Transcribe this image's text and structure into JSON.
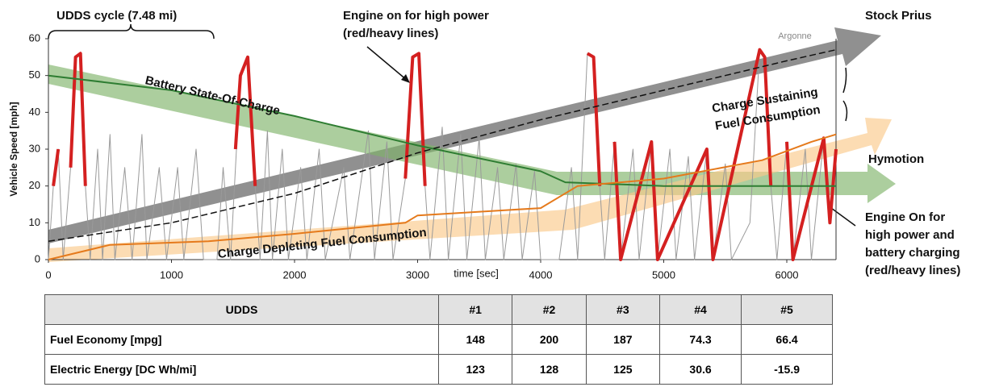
{
  "chart_data": {
    "type": "line",
    "x_label": "time [sec]",
    "y_label": "Vehicle Speed [mph]",
    "xlim": [
      0,
      6400
    ],
    "ylim": [
      0,
      60
    ],
    "xticks": [
      0,
      1000,
      2000,
      3000,
      4000,
      5000,
      6000
    ],
    "yticks": [
      0,
      10,
      20,
      30,
      40,
      50,
      60
    ],
    "logo": "Argonne",
    "annotations": [
      [
        "UDDS cycle (7.48 mi)"
      ],
      [
        "Engine on for high power",
        "(red/heavy lines)"
      ],
      [
        "Battery State-Of-Charge"
      ],
      [
        "Charge Sustaining",
        "Fuel Consumption"
      ],
      [
        "Engine On for",
        "high power and",
        "battery charging",
        "(red/heavy lines)"
      ],
      [
        "Charge Depleting Fuel Consumption"
      ]
    ],
    "series": [
      {
        "color": "#9a9a9a",
        "x": [
          0,
          40,
          80,
          120,
          180,
          220,
          260,
          300,
          340,
          400,
          440,
          500,
          540,
          620,
          680,
          760,
          800,
          900,
          960,
          1050,
          1100,
          1200,
          1260,
          1370,
          1420,
          1480,
          1560,
          1620,
          1680,
          1720,
          1780,
          1820,
          1900,
          1950,
          2050,
          2100,
          2200,
          2250,
          2400,
          2450,
          2600,
          2650,
          2750,
          2800,
          2900,
          2960,
          3010,
          3060,
          3100,
          3200,
          3250,
          3350,
          3400,
          3500,
          3550,
          3650,
          3700,
          3800,
          3850,
          3950,
          4000,
          4150,
          4250,
          4300,
          4380,
          4430,
          4480,
          4520,
          4600,
          4650,
          4750,
          4800,
          4900,
          4950,
          5050,
          5100,
          5200,
          5250,
          5350,
          5400,
          5500,
          5550,
          5700,
          5780,
          5820,
          5870,
          5920,
          6000,
          6050,
          6150,
          6200,
          6300,
          6350,
          6400
        ],
        "values": [
          0,
          20,
          30,
          0,
          25,
          55,
          56,
          20,
          0,
          30,
          0,
          34,
          0,
          25,
          0,
          34,
          0,
          25,
          0,
          25,
          0,
          30,
          0,
          0,
          25,
          0,
          50,
          55,
          20,
          0,
          35,
          0,
          30,
          0,
          25,
          0,
          30,
          0,
          25,
          0,
          35,
          0,
          32,
          0,
          22,
          55,
          56,
          20,
          0,
          36,
          0,
          34,
          0,
          33,
          0,
          25,
          0,
          26,
          0,
          24,
          0,
          0,
          25,
          0,
          56,
          55,
          20,
          0,
          32,
          0,
          30,
          0,
          32,
          0,
          30,
          0,
          28,
          0,
          30,
          0,
          26,
          0,
          10,
          57,
          55,
          20,
          0,
          32,
          0,
          30,
          0,
          33,
          10,
          30
        ]
      },
      {
        "color": "#d42020",
        "x": [
          40,
          80,
          120,
          180,
          220,
          260,
          300,
          340,
          1520,
          1560,
          1620,
          1680,
          1720,
          2900,
          2960,
          3010,
          3060,
          3100,
          3200,
          3250,
          4250,
          4300,
          4380,
          4430,
          4480,
          4520,
          4600,
          4650,
          4900,
          4950,
          5350,
          5400,
          5780,
          5820,
          5870,
          5920,
          6000,
          6050,
          6300,
          6350,
          6400
        ],
        "values": [
          20,
          30,
          null,
          25,
          55,
          56,
          20,
          null,
          30,
          50,
          55,
          20,
          null,
          22,
          55,
          56,
          20,
          null,
          36,
          null,
          25,
          null,
          56,
          55,
          20,
          null,
          32,
          0,
          32,
          0,
          30,
          0,
          57,
          55,
          20,
          null,
          32,
          0,
          33,
          10,
          30
        ]
      },
      {
        "name": "Battery State-Of-Charge",
        "color": "#2e7d32",
        "x": [
          0,
          1000,
          2000,
          3000,
          4000,
          4200,
          5000,
          6000,
          6400
        ],
        "values": [
          50,
          46,
          39,
          31,
          24,
          21,
          20,
          20,
          20
        ]
      },
      {
        "name": "Stock Prius",
        "color": "#111111",
        "x": [
          0,
          1000,
          2000,
          3000,
          4000,
          5000,
          6000,
          6400
        ],
        "values": [
          5,
          10,
          18,
          29,
          38,
          46,
          54,
          57
        ]
      },
      {
        "name": "Hymotion",
        "color": "#e57a1c",
        "x": [
          0,
          500,
          1300,
          2000,
          2900,
          3000,
          4000,
          4300,
          5000,
          5800,
          6200,
          6400
        ],
        "values": [
          0,
          4,
          5,
          7,
          10,
          12,
          14,
          20,
          22,
          27,
          32,
          34
        ]
      }
    ]
  },
  "table": {
    "header": [
      "UDDS",
      "#1",
      "#2",
      "#3",
      "#4",
      "#5"
    ],
    "rows": [
      [
        "Fuel Economy [mpg]",
        "148",
        "200",
        "187",
        "74.3",
        "66.4"
      ],
      [
        "Electric Energy [DC Wh/mi]",
        "123",
        "128",
        "125",
        "30.6",
        "-15.9"
      ]
    ]
  }
}
